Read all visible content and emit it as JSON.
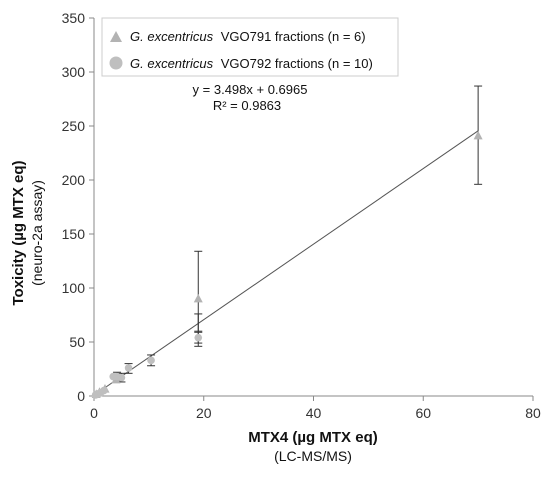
{
  "chart_data": {
    "type": "scatter",
    "xlabel": "MTX4 (µg MTX eq)",
    "xlabel_sub": "(LC-MS/MS)",
    "ylabel": "Toxicity (µg MTX eq)",
    "ylabel_sub": "(neuro-2a assay)",
    "xlim": [
      0,
      80
    ],
    "ylim": [
      0,
      350
    ],
    "x_ticks": [
      0,
      20,
      40,
      60,
      80
    ],
    "y_ticks": [
      0,
      50,
      100,
      150,
      200,
      250,
      300,
      350
    ],
    "x_tick_labels": [
      "0",
      "20",
      "40",
      "60",
      "80"
    ],
    "y_tick_labels": [
      "0",
      "50",
      "100",
      "150",
      "200",
      "250",
      "300",
      "350"
    ],
    "grid": false,
    "legend_position": "top-left",
    "series": [
      {
        "name": "VGO791 fractions (n = 6)",
        "name_italic": "G. excentricus",
        "marker": "triangle",
        "color": "#b3b3b3",
        "points": [
          {
            "x": 0.4,
            "y": 1.5
          },
          {
            "x": 1.0,
            "y": 3.5
          },
          {
            "x": 2.0,
            "y": 6.5
          },
          {
            "x": 4.0,
            "y": 15
          },
          {
            "x": 19,
            "y": 90,
            "err_low": 46,
            "err_high": 134
          },
          {
            "x": 70,
            "y": 241,
            "err_low": 196,
            "err_high": 287
          }
        ]
      },
      {
        "name": "VGO792 fractions (n = 10)",
        "name_italic": "G. excentricus",
        "marker": "circle",
        "color": "#bfbfbf",
        "points": [
          {
            "x": 0.3,
            "y": 1
          },
          {
            "x": 0.8,
            "y": 2
          },
          {
            "x": 1.2,
            "y": 3
          },
          {
            "x": 1.8,
            "y": 5
          },
          {
            "x": 3.5,
            "y": 18
          },
          {
            "x": 4.2,
            "y": 18,
            "err_low": 14,
            "err_high": 22
          },
          {
            "x": 5.0,
            "y": 17,
            "err_low": 13,
            "err_high": 21
          },
          {
            "x": 6.3,
            "y": 26,
            "err_low": 21,
            "err_high": 30
          },
          {
            "x": 10.4,
            "y": 33,
            "err_low": 28,
            "err_high": 38
          },
          {
            "x": 19,
            "y": 54,
            "err_low": 49,
            "err_high": 59
          }
        ]
      }
    ],
    "trendline": {
      "slope": 3.498,
      "intercept": 0.6965,
      "x_range": [
        0,
        70
      ],
      "equation": "y = 3.498x + 0.6965",
      "r2": "R² = 0.9863"
    },
    "extra_error_bars": [
      {
        "x": 19,
        "y": 68,
        "err_low": 60,
        "err_high": 76
      }
    ]
  }
}
